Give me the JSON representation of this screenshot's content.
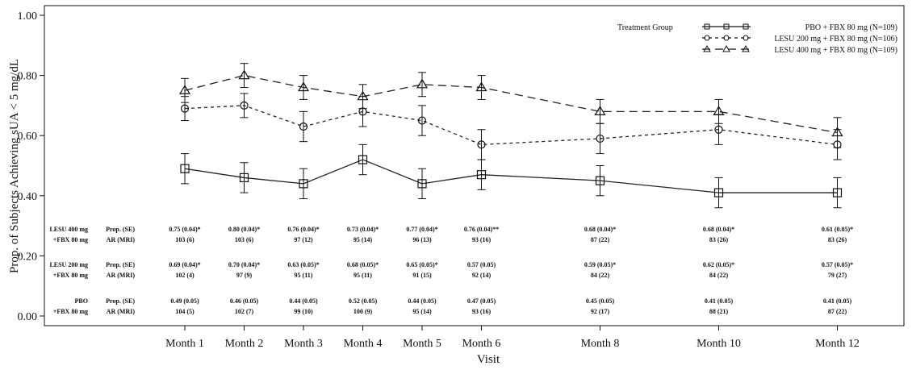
{
  "chart_data": {
    "type": "line",
    "xlabel": "Visit",
    "ylabel": "Prop. of Subjects Achieving sUA < 5 mg/dL",
    "ylim": [
      0,
      1
    ],
    "yticks": [
      "0.00",
      "0.20",
      "0.40",
      "0.60",
      "0.80",
      "1.00"
    ],
    "grid": false,
    "legend_position": "top-right",
    "legend_title": "Treatment Group",
    "month_num": [
      1,
      2,
      3,
      4,
      5,
      6,
      8,
      10,
      12
    ],
    "categories": [
      "Month 1",
      "Month 2",
      "Month 3",
      "Month 4",
      "Month 5",
      "Month 6",
      "Month 8",
      "Month 10",
      "Month 12"
    ],
    "series": [
      {
        "name": "PBO + FBX 80 mg (N=109)",
        "color": "#222222",
        "dash": "solid",
        "marker": "square",
        "values": [
          0.49,
          0.46,
          0.44,
          0.52,
          0.44,
          0.47,
          0.45,
          0.41,
          0.41
        ],
        "err": [
          0.05,
          0.05,
          0.05,
          0.05,
          0.05,
          0.05,
          0.05,
          0.05,
          0.05
        ]
      },
      {
        "name": "LESU 200 mg + FBX 80 mg (N=106)",
        "color": "#222222",
        "dash": "short",
        "marker": "circle",
        "values": [
          0.69,
          0.7,
          0.63,
          0.68,
          0.65,
          0.57,
          0.59,
          0.62,
          0.57
        ],
        "err": [
          0.04,
          0.04,
          0.05,
          0.05,
          0.05,
          0.05,
          0.05,
          0.05,
          0.05
        ]
      },
      {
        "name": "LESU 400 mg + FBX 80 mg (N=109)",
        "color": "#222222",
        "dash": "long",
        "marker": "triangle",
        "values": [
          0.75,
          0.8,
          0.76,
          0.73,
          0.77,
          0.76,
          0.68,
          0.68,
          0.61
        ],
        "err": [
          0.04,
          0.04,
          0.04,
          0.04,
          0.04,
          0.04,
          0.04,
          0.04,
          0.05
        ]
      }
    ],
    "table": [
      {
        "group": [
          "LESU 400 mg",
          "+FBX 80 mg"
        ],
        "row_labels": [
          "Prop. (SE)",
          "AR (MRI)"
        ],
        "prop": [
          "0.75 (0.04)*",
          "0.80 (0.04)*",
          "0.76 (0.04)*",
          "0.73 (0.04)*",
          "0.77 (0.04)*",
          "0.76 (0.04)**",
          "0.68 (0.04)*",
          "0.68 (0.04)*",
          "0.61 (0.05)*"
        ],
        "ar": [
          "103 (6)",
          "103 (6)",
          "97 (12)",
          "95 (14)",
          "96 (13)",
          "93 (16)",
          "87 (22)",
          "83 (26)",
          "83 (26)"
        ]
      },
      {
        "group": [
          "LESU 200 mg",
          "+FBX 80 mg"
        ],
        "row_labels": [
          "Prop. (SE)",
          "AR (MRI)"
        ],
        "prop": [
          "0.69 (0.04)*",
          "0.70 (0.04)*",
          "0.63 (0.05)*",
          "0.68 (0.05)*",
          "0.65 (0.05)*",
          "0.57 (0.05)",
          "0.59 (0.05)*",
          "0.62 (0.05)*",
          "0.57 (0.05)*"
        ],
        "ar": [
          "102 (4)",
          "97 (9)",
          "95 (11)",
          "95 (11)",
          "91 (15)",
          "92 (14)",
          "84 (22)",
          "84 (22)",
          "79 (27)"
        ]
      },
      {
        "group": [
          "PBO",
          "+FBX 80 mg"
        ],
        "row_labels": [
          "Prop. (SE)",
          "AR (MRI)"
        ],
        "prop": [
          "0.49 (0.05)",
          "0.46 (0.05)",
          "0.44 (0.05)",
          "0.52 (0.05)",
          "0.44 (0.05)",
          "0.47 (0.05)",
          "0.45 (0.05)",
          "0.41 (0.05)",
          "0.41 (0.05)"
        ],
        "ar": [
          "104 (5)",
          "102 (7)",
          "99 (10)",
          "100 (9)",
          "95 (14)",
          "93 (16)",
          "92 (17)",
          "88 (21)",
          "87 (22)"
        ]
      }
    ]
  }
}
